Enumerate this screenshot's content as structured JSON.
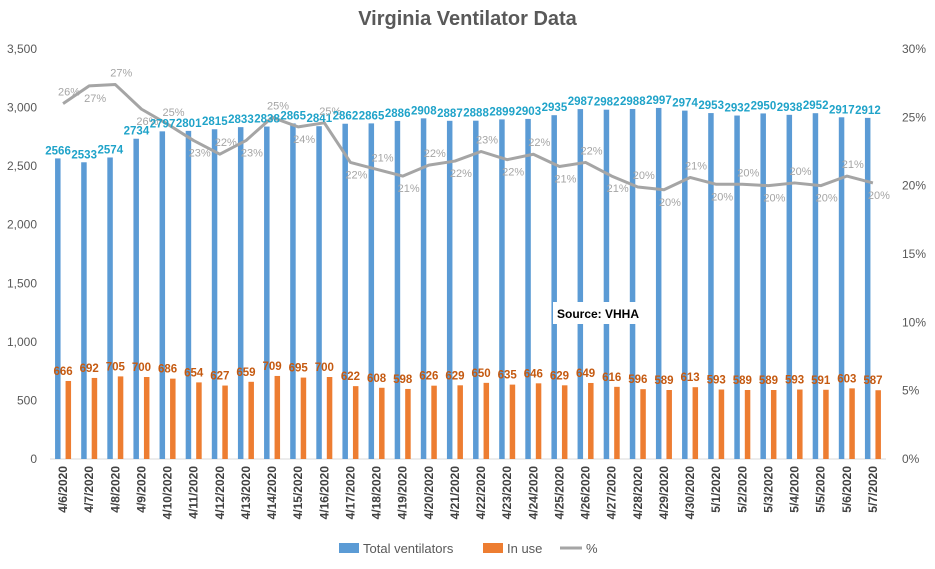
{
  "chart_data": {
    "type": "bar",
    "title": "Virginia Ventilator Data",
    "source_note": "Source: VHHA",
    "categories": [
      "4/6/2020",
      "4/7/2020",
      "4/8/2020",
      "4/9/2020",
      "4/10/2020",
      "4/11/2020",
      "4/12/2020",
      "4/13/2020",
      "4/14/2020",
      "4/15/2020",
      "4/16/2020",
      "4/17/2020",
      "4/18/2020",
      "4/19/2020",
      "4/20/2020",
      "4/21/2020",
      "4/22/2020",
      "4/23/2020",
      "4/24/2020",
      "4/25/2020",
      "4/26/2020",
      "4/27/2020",
      "4/28/2020",
      "4/29/2020",
      "4/30/2020",
      "5/1/2020",
      "5/2/2020",
      "5/3/2020",
      "5/4/2020",
      "5/5/2020",
      "5/6/2020",
      "5/7/2020"
    ],
    "series": [
      {
        "name": "Total ventilators",
        "type": "bar",
        "axis": "left",
        "color": "#5B9BD5",
        "label_color": "#1FA3C9",
        "values": [
          2566,
          2533,
          2574,
          2734,
          2797,
          2801,
          2815,
          2833,
          2838,
          2865,
          2841,
          2862,
          2865,
          2886,
          2908,
          2887,
          2888,
          2899,
          2903,
          2935,
          2987,
          2982,
          2988,
          2997,
          2974,
          2953,
          2932,
          2950,
          2938,
          2952,
          2917,
          2912
        ]
      },
      {
        "name": "In use",
        "type": "bar",
        "axis": "left",
        "color": "#ED7D31",
        "label_color": "#C55A11",
        "values": [
          666,
          692,
          705,
          700,
          686,
          654,
          627,
          659,
          709,
          695,
          700,
          622,
          608,
          598,
          626,
          629,
          650,
          635,
          646,
          629,
          649,
          616,
          596,
          589,
          613,
          593,
          589,
          589,
          593,
          591,
          603,
          587
        ]
      },
      {
        "name": "%",
        "type": "line",
        "axis": "right",
        "color": "#A5A5A5",
        "label_color": "#A5A5A5",
        "values": [
          26,
          27,
          27,
          26,
          25,
          23,
          22,
          23,
          25,
          24,
          25,
          22,
          21,
          21,
          22,
          22,
          23,
          22,
          22,
          21,
          22,
          21,
          20,
          20,
          21,
          20,
          20,
          20,
          20,
          20,
          21,
          20
        ],
        "percent_values": [
          0.26,
          0.273,
          0.274,
          0.256,
          0.245,
          0.233,
          0.223,
          0.233,
          0.25,
          0.243,
          0.246,
          0.217,
          0.212,
          0.207,
          0.215,
          0.218,
          0.225,
          0.219,
          0.223,
          0.214,
          0.217,
          0.207,
          0.199,
          0.197,
          0.206,
          0.201,
          0.201,
          0.2,
          0.202,
          0.2,
          0.207,
          0.202
        ]
      }
    ],
    "left_axis": {
      "min": 0,
      "max": 3500,
      "step": 500,
      "tick_labels": [
        "0",
        "500",
        "1,000",
        "1,500",
        "2,000",
        "2,500",
        "3,000",
        "3,500"
      ]
    },
    "right_axis": {
      "min": 0,
      "max": 0.3,
      "step": 0.05,
      "tick_labels": [
        "0%",
        "5%",
        "10%",
        "15%",
        "20%",
        "25%",
        "30%"
      ]
    },
    "grid": false,
    "legend_position": "bottom",
    "legend": [
      "Total ventilators",
      "In use",
      "%"
    ]
  }
}
